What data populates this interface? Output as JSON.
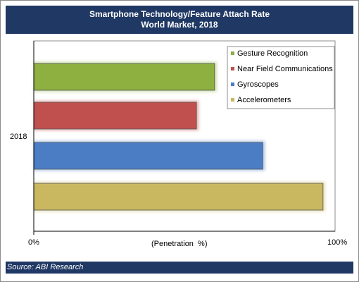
{
  "header": {
    "title": "Smartphone Technology/Feature Attach Rate",
    "subtitle": "World Market, 2018"
  },
  "footer": {
    "source": "Source: ABI Research"
  },
  "chart_data": {
    "type": "bar",
    "orientation": "horizontal",
    "title": "Smartphone Technology/Feature Attach Rate",
    "subtitle": "World Market, 2018",
    "categories": [
      "2018"
    ],
    "series": [
      {
        "name": "Gesture Recognition",
        "values": [
          60
        ],
        "color": "#8db040"
      },
      {
        "name": "Near Field Communications",
        "values": [
          54
        ],
        "color": "#c0504d"
      },
      {
        "name": "Gyroscopes",
        "values": [
          76
        ],
        "color": "#4a7dc4"
      },
      {
        "name": "Accelerometers",
        "values": [
          96
        ],
        "color": "#c9b860"
      }
    ],
    "xlabel": "(Penetration  %)",
    "ylabel": "",
    "xlim": [
      0,
      100
    ],
    "x_tick_labels": [
      "0%",
      "100%"
    ],
    "grid": false,
    "legend": "top-right",
    "source": "Source: ABI Research"
  }
}
